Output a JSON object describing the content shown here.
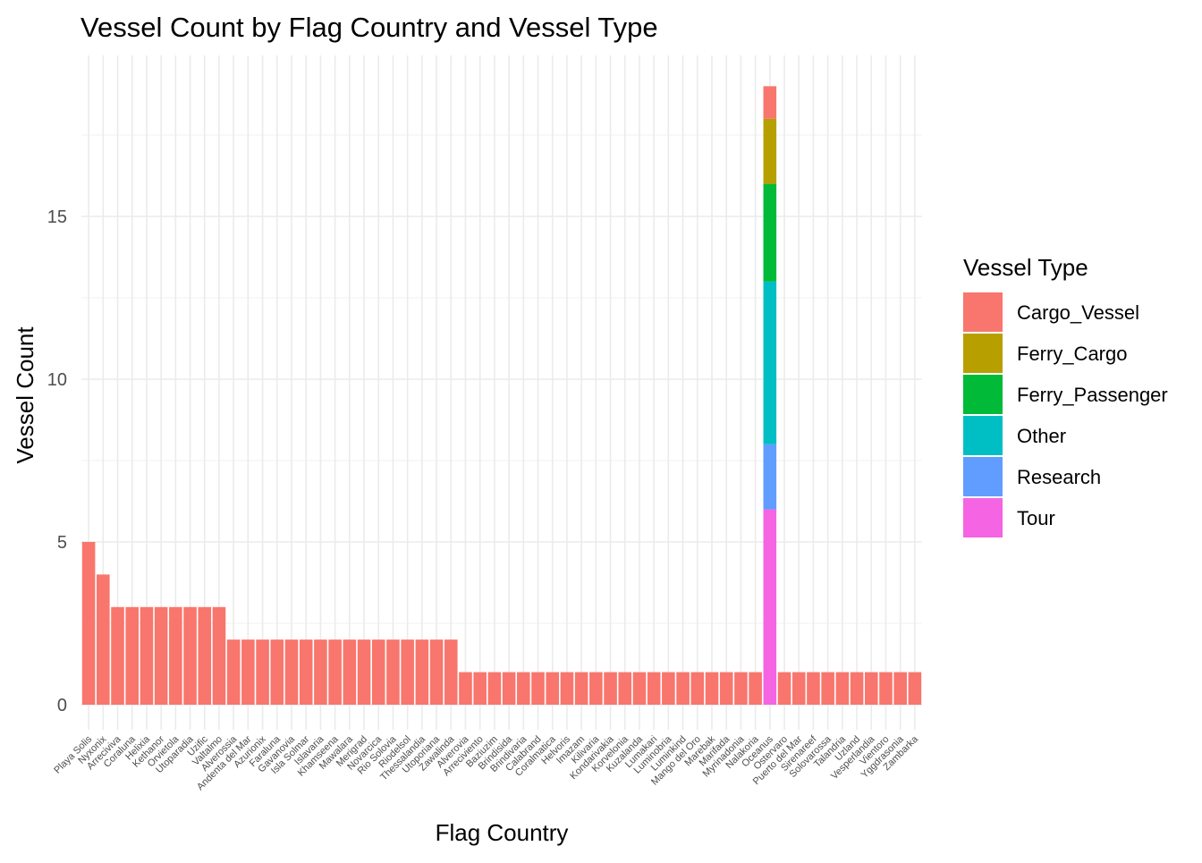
{
  "chart_data": {
    "type": "bar",
    "stacked": true,
    "title": "Vessel Count by Flag Country and Vessel Type",
    "xlabel": "Flag Country",
    "ylabel": "Vessel Count",
    "ylim": [
      0,
      19
    ],
    "yticks": [
      0,
      5,
      10,
      15
    ],
    "grid": true,
    "legend": {
      "title": "Vessel Type",
      "position": "right"
    },
    "categories": [
      "Playa Solis",
      "Nyxonix",
      "Arreciviva",
      "Coraluna",
      "Helixia",
      "Kethanor",
      "Orvietola",
      "Utoparadia",
      "Uzific",
      "Valtalmo",
      "Alverossia",
      "Andenta del Mar",
      "Azurionix",
      "Faraluna",
      "Gavanovia",
      "Isla Solmar",
      "Islavaria",
      "Khamseena",
      "Mawalara",
      "Merigrad",
      "Novarcica",
      "Rio Solovia",
      "Riodelsol",
      "Thessalandia",
      "Utoporiana",
      "Zawalinda",
      "Alverovia",
      "Arreciviento",
      "Baziuzim",
      "Brindisida",
      "Brindivaria",
      "Calabrand",
      "Coralmatica",
      "Helvoris",
      "Imazam",
      "Kilivaria",
      "Kondarivakia",
      "Korvelonia",
      "Kuzalanda",
      "Lumakari",
      "Luminobria",
      "Luminkind",
      "Mango del Oro",
      "Marebak",
      "Marifada",
      "Myrinadonia",
      "Nalakoria",
      "Oceanus",
      "Ostervaro",
      "Puerto del Mar",
      "Sirenareef",
      "Solovarossa",
      "Talandria",
      "Uzland",
      "Vesperlandia",
      "Vientoro",
      "Yggdrasonia",
      "Zambarka"
    ],
    "colors": {
      "Cargo_Vessel": "#F8766D",
      "Ferry_Cargo": "#B79F00",
      "Ferry_Passenger": "#00BA38",
      "Other": "#00BFC4",
      "Research": "#619CFF",
      "Tour": "#F564E3"
    },
    "series": [
      {
        "name": "Cargo_Vessel",
        "values": [
          5,
          4,
          3,
          3,
          3,
          3,
          3,
          3,
          3,
          3,
          2,
          2,
          2,
          2,
          2,
          2,
          2,
          2,
          2,
          2,
          2,
          2,
          2,
          2,
          2,
          2,
          1,
          1,
          1,
          1,
          1,
          1,
          1,
          1,
          1,
          1,
          1,
          1,
          1,
          1,
          1,
          1,
          1,
          1,
          1,
          1,
          1,
          1,
          1,
          1,
          1,
          1,
          1,
          1,
          1,
          1,
          1,
          1
        ]
      },
      {
        "name": "Ferry_Cargo",
        "values": [
          0,
          0,
          0,
          0,
          0,
          0,
          0,
          0,
          0,
          0,
          0,
          0,
          0,
          0,
          0,
          0,
          0,
          0,
          0,
          0,
          0,
          0,
          0,
          0,
          0,
          0,
          0,
          0,
          0,
          0,
          0,
          0,
          0,
          0,
          0,
          0,
          0,
          0,
          0,
          0,
          0,
          0,
          0,
          0,
          0,
          0,
          0,
          2,
          0,
          0,
          0,
          0,
          0,
          0,
          0,
          0,
          0,
          0
        ]
      },
      {
        "name": "Ferry_Passenger",
        "values": [
          0,
          0,
          0,
          0,
          0,
          0,
          0,
          0,
          0,
          0,
          0,
          0,
          0,
          0,
          0,
          0,
          0,
          0,
          0,
          0,
          0,
          0,
          0,
          0,
          0,
          0,
          0,
          0,
          0,
          0,
          0,
          0,
          0,
          0,
          0,
          0,
          0,
          0,
          0,
          0,
          0,
          0,
          0,
          0,
          0,
          0,
          0,
          3,
          0,
          0,
          0,
          0,
          0,
          0,
          0,
          0,
          0,
          0
        ]
      },
      {
        "name": "Other",
        "values": [
          0,
          0,
          0,
          0,
          0,
          0,
          0,
          0,
          0,
          0,
          0,
          0,
          0,
          0,
          0,
          0,
          0,
          0,
          0,
          0,
          0,
          0,
          0,
          0,
          0,
          0,
          0,
          0,
          0,
          0,
          0,
          0,
          0,
          0,
          0,
          0,
          0,
          0,
          0,
          0,
          0,
          0,
          0,
          0,
          0,
          0,
          0,
          5,
          0,
          0,
          0,
          0,
          0,
          0,
          0,
          0,
          0,
          0
        ]
      },
      {
        "name": "Research",
        "values": [
          0,
          0,
          0,
          0,
          0,
          0,
          0,
          0,
          0,
          0,
          0,
          0,
          0,
          0,
          0,
          0,
          0,
          0,
          0,
          0,
          0,
          0,
          0,
          0,
          0,
          0,
          0,
          0,
          0,
          0,
          0,
          0,
          0,
          0,
          0,
          0,
          0,
          0,
          0,
          0,
          0,
          0,
          0,
          0,
          0,
          0,
          0,
          2,
          0,
          0,
          0,
          0,
          0,
          0,
          0,
          0,
          0,
          0
        ]
      },
      {
        "name": "Tour",
        "values": [
          0,
          0,
          0,
          0,
          0,
          0,
          0,
          0,
          0,
          0,
          0,
          0,
          0,
          0,
          0,
          0,
          0,
          0,
          0,
          0,
          0,
          0,
          0,
          0,
          0,
          0,
          0,
          0,
          0,
          0,
          0,
          0,
          0,
          0,
          0,
          0,
          0,
          0,
          0,
          0,
          0,
          0,
          0,
          0,
          0,
          0,
          0,
          6,
          0,
          0,
          0,
          0,
          0,
          0,
          0,
          0,
          0,
          0
        ]
      }
    ]
  }
}
